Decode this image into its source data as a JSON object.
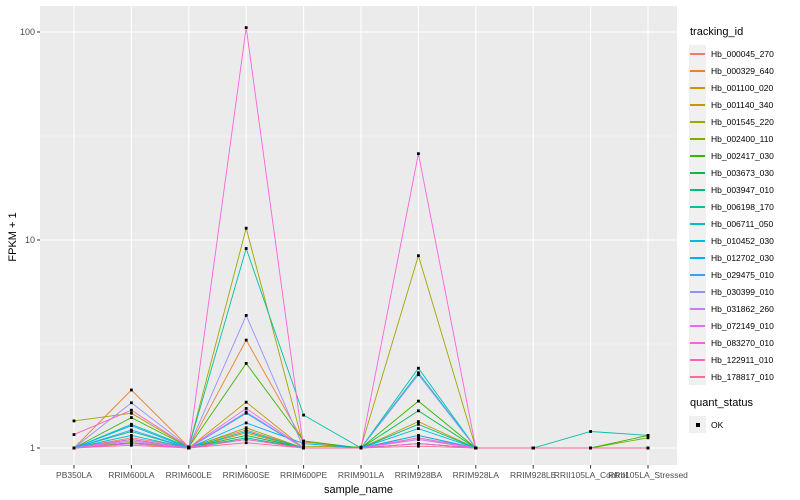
{
  "chart_data": {
    "type": "line",
    "title": "",
    "xlabel": "sample_name",
    "ylabel": "FPKM + 1",
    "y_scale": "log10",
    "y_ticks": [
      1,
      10,
      100
    ],
    "ylim": [
      1,
      110
    ],
    "grid": true,
    "panel_bg": "#EBEBEB",
    "grid_color": "#FFFFFF",
    "point_color": "#000000",
    "legend_title": "tracking_id",
    "quant_legend_title": "quant_status",
    "quant_legend_label": "OK",
    "categories": [
      "PB350LA",
      "RRIM600LA",
      "RRIM600LE",
      "RRIM600SE",
      "RRIM600PE",
      "RRIM901LA",
      "RRIM928BA",
      "RRIM928LA",
      "RRIM928LE",
      "RRII105LA_Control",
      "RRII105LA_Stressed"
    ],
    "series": [
      {
        "name": "Hb_000045_270",
        "color": "#F8766D",
        "values": [
          1.0,
          1.12,
          1.01,
          1.22,
          1.0,
          1.0,
          1.1,
          1.0,
          1.0,
          1.0,
          1.0
        ]
      },
      {
        "name": "Hb_000329_640",
        "color": "#EA8331",
        "values": [
          1.0,
          1.9,
          1.01,
          3.3,
          1.07,
          1.0,
          1.12,
          1.0,
          1.0,
          1.0,
          1.0
        ]
      },
      {
        "name": "Hb_001100_020",
        "color": "#D89000",
        "values": [
          1.0,
          1.1,
          1.0,
          1.18,
          1.0,
          1.0,
          1.15,
          1.0,
          1.0,
          1.0,
          1.0
        ]
      },
      {
        "name": "Hb_001140_340",
        "color": "#C09B00",
        "values": [
          1.0,
          1.06,
          1.0,
          1.66,
          1.0,
          1.0,
          1.34,
          1.0,
          1.0,
          1.0,
          1.0
        ]
      },
      {
        "name": "Hb_001545_220",
        "color": "#A3A500",
        "values": [
          1.35,
          1.47,
          1.01,
          11.4,
          1.02,
          1.01,
          8.4,
          1.0,
          1.0,
          1.0,
          1.0
        ]
      },
      {
        "name": "Hb_002400_110",
        "color": "#7CAE00",
        "values": [
          1.0,
          1.06,
          1.0,
          1.25,
          1.0,
          1.0,
          1.05,
          1.0,
          1.0,
          1.0,
          1.12
        ]
      },
      {
        "name": "Hb_002417_030",
        "color": "#39B600",
        "values": [
          1.0,
          1.4,
          1.01,
          2.55,
          1.08,
          1.0,
          1.68,
          1.0,
          1.0,
          1.0,
          1.15
        ]
      },
      {
        "name": "Hb_003673_030",
        "color": "#00BB4E",
        "values": [
          1.0,
          1.1,
          1.0,
          1.15,
          1.0,
          1.0,
          1.51,
          1.0,
          1.0,
          1.0,
          1.0
        ]
      },
      {
        "name": "Hb_003947_010",
        "color": "#00BF7D",
        "values": [
          1.0,
          1.2,
          1.0,
          1.12,
          1.0,
          1.0,
          1.3,
          1.0,
          1.0,
          1.0,
          1.0
        ]
      },
      {
        "name": "Hb_006198_170",
        "color": "#00C1A3",
        "values": [
          1.0,
          1.3,
          1.01,
          9.1,
          1.44,
          1.0,
          2.42,
          1.0,
          1.0,
          1.2,
          1.15
        ]
      },
      {
        "name": "Hb_006711_050",
        "color": "#00BFC4",
        "values": [
          1.0,
          1.15,
          1.0,
          1.2,
          1.0,
          1.0,
          2.3,
          1.0,
          1.0,
          1.0,
          1.0
        ]
      },
      {
        "name": "Hb_010452_030",
        "color": "#00BAE0",
        "values": [
          1.0,
          1.05,
          1.0,
          1.47,
          1.0,
          1.0,
          1.24,
          1.0,
          1.0,
          1.0,
          1.0
        ]
      },
      {
        "name": "Hb_012702_030",
        "color": "#00B0F6",
        "values": [
          1.0,
          1.28,
          1.0,
          1.32,
          1.05,
          1.0,
          1.15,
          1.0,
          1.0,
          1.0,
          1.0
        ]
      },
      {
        "name": "Hb_029475_010",
        "color": "#35A2FF",
        "values": [
          1.0,
          1.22,
          1.0,
          1.1,
          1.0,
          1.0,
          1.05,
          1.0,
          1.0,
          1.0,
          1.0
        ]
      },
      {
        "name": "Hb_030399_010",
        "color": "#9590FF",
        "values": [
          1.0,
          1.65,
          1.01,
          4.34,
          1.0,
          1.0,
          2.25,
          1.0,
          1.0,
          1.0,
          1.0
        ]
      },
      {
        "name": "Hb_031862_260",
        "color": "#C77CFF",
        "values": [
          1.0,
          1.08,
          1.0,
          1.49,
          1.0,
          1.0,
          1.1,
          1.0,
          1.0,
          1.0,
          1.0
        ]
      },
      {
        "name": "Hb_072149_010",
        "color": "#E76BF3",
        "values": [
          1.0,
          1.1,
          1.0,
          1.55,
          1.0,
          1.0,
          1.12,
          1.0,
          1.0,
          1.0,
          1.0
        ]
      },
      {
        "name": "Hb_083270_010",
        "color": "#FA62DB",
        "values": [
          1.0,
          1.05,
          1.0,
          105.0,
          1.0,
          1.0,
          26.0,
          1.0,
          1.0,
          1.0,
          1.0
        ]
      },
      {
        "name": "Hb_122911_010",
        "color": "#FF62BC",
        "values": [
          1.16,
          1.52,
          1.01,
          1.1,
          1.0,
          1.0,
          1.05,
          1.0,
          1.0,
          1.0,
          1.0
        ]
      },
      {
        "name": "Hb_178817_010",
        "color": "#FF6A98",
        "values": [
          1.0,
          1.03,
          1.0,
          1.06,
          1.0,
          1.0,
          1.02,
          1.0,
          1.0,
          1.0,
          1.0
        ]
      }
    ]
  }
}
